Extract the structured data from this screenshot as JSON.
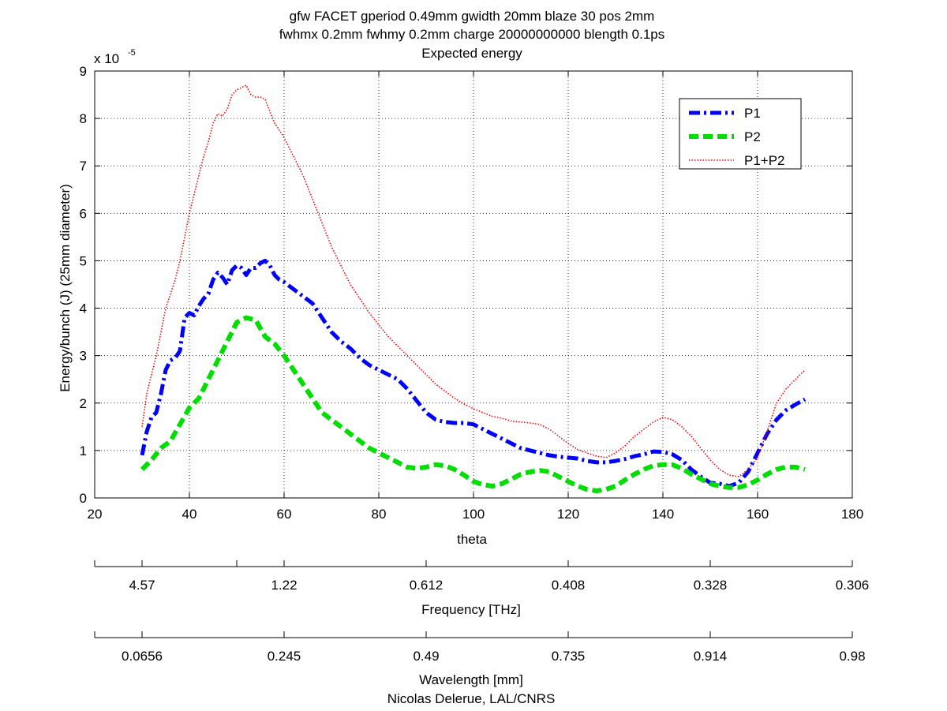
{
  "chart_data": {
    "type": "line",
    "title_lines": [
      "gfw FACET gperiod 0.49mm gwidth 20mm blaze 30 pos 2mm",
      "fwhmx 0.2mm fwhmy 0.2mm charge 20000000000 blength 0.1ps",
      "Expected energy"
    ],
    "xlabel": "theta",
    "ylabel": "Energy/bunch (J) (25mm diameter)",
    "y_multiplier_base": "x 10",
    "y_multiplier_exp": "-5",
    "xlim": [
      20,
      180
    ],
    "ylim": [
      0,
      9
    ],
    "x_ticks": [
      "20",
      "40",
      "60",
      "80",
      "100",
      "120",
      "140",
      "160",
      "180"
    ],
    "y_ticks": [
      "0",
      "1",
      "2",
      "3",
      "4",
      "5",
      "6",
      "7",
      "8",
      "9"
    ],
    "grid": true,
    "legend_position": "top-right",
    "series": [
      {
        "name": "P1",
        "color": "#0000ff",
        "style": "dash-dot",
        "x": [
          30,
          31,
          32,
          33,
          34,
          35,
          36,
          37,
          38,
          39,
          40,
          41,
          42,
          43,
          44,
          45,
          46,
          47,
          48,
          49,
          50,
          51,
          52,
          53,
          54,
          55,
          56,
          57,
          58,
          59,
          60,
          62,
          64,
          66,
          68,
          70,
          72,
          74,
          76,
          78,
          80,
          82,
          84,
          86,
          88,
          90,
          92,
          94,
          96,
          98,
          100,
          102,
          104,
          106,
          108,
          110,
          112,
          114,
          116,
          118,
          120,
          122,
          124,
          126,
          128,
          130,
          132,
          134,
          136,
          138,
          140,
          142,
          144,
          146,
          148,
          150,
          152,
          154,
          156,
          158,
          160,
          162,
          164,
          166,
          168,
          170
        ],
        "values": [
          0.9,
          1.4,
          1.7,
          1.8,
          2.2,
          2.7,
          2.9,
          2.95,
          3.1,
          3.8,
          3.9,
          3.85,
          4.05,
          4.2,
          4.3,
          4.6,
          4.75,
          4.65,
          4.5,
          4.8,
          4.9,
          4.85,
          4.7,
          4.85,
          4.85,
          4.95,
          5.0,
          4.9,
          4.7,
          4.6,
          4.55,
          4.4,
          4.25,
          4.1,
          3.8,
          3.5,
          3.3,
          3.15,
          2.95,
          2.8,
          2.7,
          2.6,
          2.5,
          2.3,
          2.05,
          1.8,
          1.65,
          1.6,
          1.58,
          1.58,
          1.55,
          1.45,
          1.35,
          1.25,
          1.15,
          1.05,
          1.0,
          0.95,
          0.9,
          0.87,
          0.85,
          0.83,
          0.78,
          0.75,
          0.75,
          0.78,
          0.82,
          0.88,
          0.92,
          0.98,
          0.97,
          0.92,
          0.8,
          0.6,
          0.45,
          0.32,
          0.3,
          0.25,
          0.32,
          0.55,
          0.95,
          1.35,
          1.65,
          1.85,
          1.97,
          2.08
        ]
      },
      {
        "name": "P2",
        "color": "#00dd00",
        "style": "dashed",
        "x": [
          30,
          32,
          34,
          36,
          38,
          40,
          42,
          44,
          46,
          48,
          50,
          52,
          54,
          56,
          58,
          60,
          62,
          64,
          66,
          68,
          70,
          72,
          74,
          76,
          78,
          80,
          82,
          84,
          86,
          88,
          90,
          92,
          94,
          96,
          98,
          100,
          102,
          104,
          106,
          108,
          110,
          112,
          114,
          116,
          118,
          120,
          122,
          124,
          126,
          128,
          130,
          132,
          134,
          136,
          138,
          140,
          142,
          144,
          146,
          148,
          150,
          152,
          154,
          156,
          158,
          160,
          162,
          164,
          166,
          168,
          170
        ],
        "values": [
          0.6,
          0.8,
          1.05,
          1.2,
          1.55,
          1.9,
          2.1,
          2.5,
          2.9,
          3.3,
          3.7,
          3.8,
          3.75,
          3.4,
          3.25,
          3.0,
          2.7,
          2.4,
          2.1,
          1.8,
          1.65,
          1.5,
          1.35,
          1.2,
          1.05,
          0.95,
          0.85,
          0.75,
          0.65,
          0.62,
          0.65,
          0.7,
          0.68,
          0.6,
          0.48,
          0.35,
          0.28,
          0.25,
          0.3,
          0.4,
          0.5,
          0.55,
          0.58,
          0.55,
          0.45,
          0.35,
          0.25,
          0.18,
          0.15,
          0.18,
          0.25,
          0.38,
          0.5,
          0.6,
          0.68,
          0.7,
          0.7,
          0.62,
          0.5,
          0.4,
          0.3,
          0.25,
          0.22,
          0.22,
          0.28,
          0.38,
          0.5,
          0.6,
          0.65,
          0.65,
          0.6
        ]
      },
      {
        "name": "P1+P2",
        "color": "#ff0000",
        "style": "dotted",
        "x": [
          30,
          31,
          32,
          33,
          34,
          35,
          36,
          37,
          38,
          39,
          40,
          41,
          42,
          43,
          44,
          45,
          46,
          47,
          48,
          49,
          50,
          51,
          52,
          53,
          54,
          55,
          56,
          58,
          60,
          62,
          64,
          66,
          68,
          70,
          72,
          74,
          76,
          78,
          80,
          82,
          84,
          86,
          88,
          90,
          92,
          94,
          96,
          98,
          100,
          102,
          104,
          106,
          108,
          110,
          112,
          114,
          116,
          118,
          120,
          122,
          124,
          126,
          128,
          130,
          132,
          134,
          136,
          138,
          140,
          142,
          144,
          146,
          148,
          150,
          152,
          154,
          156,
          158,
          160,
          162,
          164,
          166,
          168,
          170
        ],
        "values": [
          1.5,
          2.2,
          2.6,
          3.0,
          3.5,
          4.0,
          4.3,
          4.6,
          5.0,
          5.5,
          6.0,
          6.4,
          6.8,
          7.2,
          7.5,
          7.9,
          8.1,
          8.05,
          8.2,
          8.5,
          8.6,
          8.65,
          8.7,
          8.5,
          8.45,
          8.45,
          8.4,
          7.9,
          7.6,
          7.2,
          6.8,
          6.3,
          5.8,
          5.3,
          4.9,
          4.5,
          4.2,
          3.9,
          3.65,
          3.4,
          3.2,
          3.0,
          2.8,
          2.6,
          2.4,
          2.25,
          2.1,
          1.98,
          1.88,
          1.8,
          1.72,
          1.68,
          1.62,
          1.6,
          1.58,
          1.55,
          1.45,
          1.3,
          1.15,
          1.02,
          0.95,
          0.88,
          0.85,
          0.95,
          1.1,
          1.3,
          1.45,
          1.6,
          1.7,
          1.65,
          1.5,
          1.3,
          1.05,
          0.8,
          0.6,
          0.48,
          0.45,
          0.6,
          0.85,
          1.4,
          2.0,
          2.3,
          2.5,
          2.7
        ]
      }
    ],
    "secondary_axes": [
      {
        "label": "Frequency [THz]",
        "ticks": [
          {
            "theta": 20,
            "label": ""
          },
          {
            "theta": 30,
            "label": "4.57"
          },
          {
            "theta": 50,
            "label": ""
          },
          {
            "theta": 60,
            "label": "1.22"
          },
          {
            "theta": 90,
            "label": "0.612"
          },
          {
            "theta": 120,
            "label": "0.408"
          },
          {
            "theta": 150,
            "label": "0.328"
          },
          {
            "theta": 180,
            "label": "0.306"
          }
        ]
      },
      {
        "label": "Wavelength [mm]",
        "ticks": [
          {
            "theta": 20,
            "label": ""
          },
          {
            "theta": 30,
            "label": "0.0656"
          },
          {
            "theta": 60,
            "label": "0.245"
          },
          {
            "theta": 90,
            "label": "0.49"
          },
          {
            "theta": 120,
            "label": "0.735"
          },
          {
            "theta": 150,
            "label": "0.914"
          },
          {
            "theta": 180,
            "label": "0.98"
          }
        ]
      }
    ],
    "footer": "Nicolas Delerue, LAL/CNRS"
  }
}
